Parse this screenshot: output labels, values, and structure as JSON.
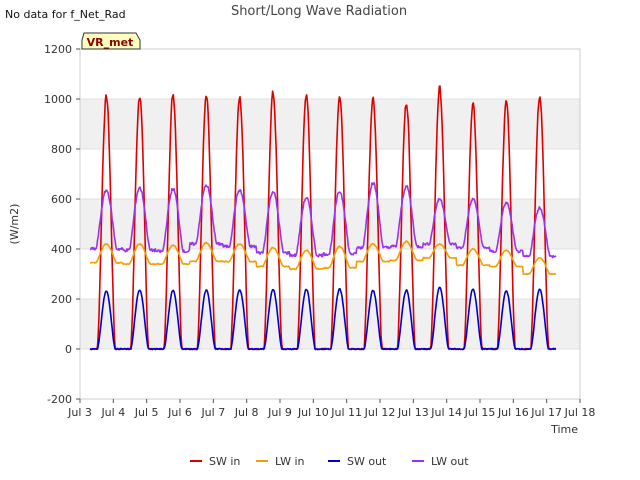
{
  "note": "No data for f_Net_Rad",
  "badge": "VR_met",
  "chart_data": {
    "type": "line",
    "title": "Short/Long Wave Radiation",
    "xlabel": "Time",
    "ylabel": "(W/m2)",
    "xlim": [
      3,
      18
    ],
    "ylim": [
      -200,
      1200
    ],
    "x_ticks": [
      {
        "value": 3,
        "label": "Jul 3"
      },
      {
        "value": 4,
        "label": "Jul 4"
      },
      {
        "value": 5,
        "label": "Jul 5"
      },
      {
        "value": 6,
        "label": "Jul 6"
      },
      {
        "value": 7,
        "label": "Jul 7"
      },
      {
        "value": 8,
        "label": "Jul 8"
      },
      {
        "value": 9,
        "label": "Jul 9"
      },
      {
        "value": 10,
        "label": "Jul 10"
      },
      {
        "value": 11,
        "label": "Jul 11"
      },
      {
        "value": 12,
        "label": "Jul 12"
      },
      {
        "value": 13,
        "label": "Jul 13"
      },
      {
        "value": 14,
        "label": "Jul 14"
      },
      {
        "value": 15,
        "label": "Jul 15"
      },
      {
        "value": 16,
        "label": "Jul 16"
      },
      {
        "value": 17,
        "label": "Jul 17"
      },
      {
        "value": 18,
        "label": "Jul 18"
      }
    ],
    "y_ticks": [
      -200,
      0,
      200,
      400,
      600,
      800,
      1000,
      1200
    ],
    "grid": "horizontal bands",
    "legend": "bottom",
    "series": [
      {
        "name": "SW in",
        "color": "#dd0000",
        "style": "diurnal-peak",
        "day_start": 3.3,
        "daily_peaks": [
          1010,
          1010,
          1020,
          1010,
          1005,
          1025,
          1020,
          1015,
          1005,
          985,
          1045,
          980,
          990,
          1010
        ],
        "night_value": 0
      },
      {
        "name": "LW in",
        "color": "#f0a000",
        "style": "diurnal-smooth",
        "day_start": 3.3,
        "daily_max": [
          420,
          420,
          415,
          425,
          420,
          405,
          395,
          410,
          420,
          430,
          420,
          400,
          395,
          365
        ],
        "daily_min": [
          345,
          340,
          340,
          350,
          350,
          330,
          320,
          325,
          350,
          355,
          365,
          335,
          330,
          300
        ]
      },
      {
        "name": "SW out",
        "color": "#0000cc",
        "style": "diurnal-peak",
        "day_start": 3.3,
        "daily_peaks": [
          232,
          235,
          235,
          235,
          237,
          238,
          238,
          240,
          235,
          235,
          245,
          240,
          232,
          238
        ],
        "night_value": 0
      },
      {
        "name": "LW out",
        "color": "#9933ee",
        "style": "diurnal-smooth",
        "day_start": 3.3,
        "daily_max": [
          635,
          645,
          640,
          655,
          635,
          630,
          605,
          630,
          665,
          650,
          600,
          600,
          585,
          565
        ],
        "daily_min": [
          400,
          395,
          390,
          420,
          410,
          385,
          375,
          380,
          405,
          410,
          420,
          405,
          390,
          370
        ]
      }
    ]
  }
}
